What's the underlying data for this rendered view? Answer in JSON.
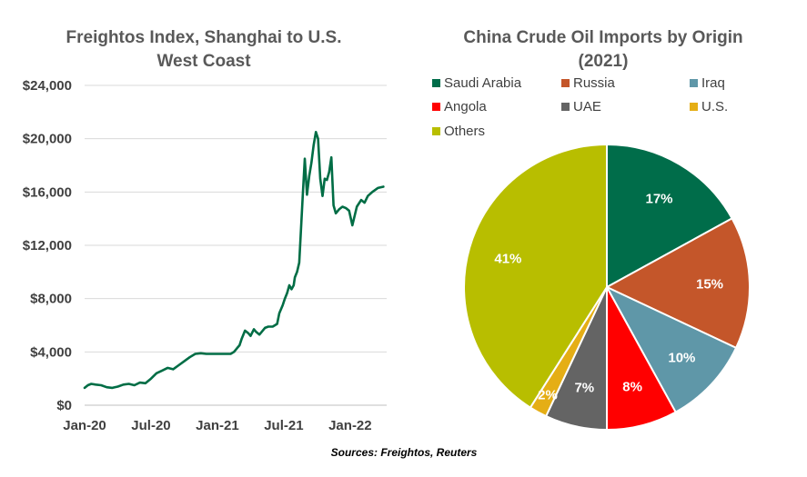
{
  "chart_data": [
    {
      "type": "line",
      "title_lines": [
        "Freightos Index, Shanghai to U.S.",
        "West Coast"
      ],
      "xlabel": "",
      "ylabel": "",
      "x_tick_labels": [
        "Jan-20",
        "Jul-20",
        "Jan-21",
        "Jul-21",
        "Jan-22"
      ],
      "x_tick_months": [
        0,
        6,
        12,
        18,
        24
      ],
      "x_range_months": [
        0,
        27.3
      ],
      "y_tick_labels": [
        "$0",
        "$4,000",
        "$8,000",
        "$12,000",
        "$16,000",
        "$20,000",
        "$24,000"
      ],
      "y_ticks": [
        0,
        4000,
        8000,
        12000,
        16000,
        20000,
        24000
      ],
      "ylim": [
        0,
        24000
      ],
      "grid": "horizontal",
      "line_color": "#006D45",
      "series": [
        {
          "month": [
            0,
            0.3,
            0.6,
            1.0,
            1.5,
            2.0,
            2.5,
            3.0,
            3.5,
            4.0,
            4.5,
            5.0,
            5.5,
            6.0,
            6.5,
            7.0,
            7.5,
            8.0,
            8.5,
            9.0,
            9.5,
            10.0,
            10.5,
            11.0,
            11.5,
            12.0,
            12.5,
            12.8,
            13.0,
            13.2,
            13.5,
            13.8,
            14.0,
            14.2,
            14.5,
            14.8,
            15.0,
            15.3,
            15.5,
            15.8,
            16.0,
            16.3,
            16.6,
            17.0,
            17.2,
            17.4,
            17.6,
            17.9,
            18.1,
            18.3,
            18.5,
            18.7,
            18.9,
            19.0,
            19.2,
            19.4,
            19.7,
            19.9,
            20.1,
            20.3,
            20.5,
            20.7,
            20.9,
            21.1,
            21.3,
            21.5,
            21.7,
            21.9,
            22.1,
            22.3,
            22.5,
            22.7,
            23.0,
            23.3,
            23.6,
            23.9,
            24.2,
            24.6,
            25.0,
            25.3,
            25.6,
            26.0,
            26.5,
            27.0
          ],
          "values": [
            1300,
            1500,
            1600,
            1550,
            1500,
            1350,
            1300,
            1400,
            1550,
            1600,
            1500,
            1700,
            1650,
            2000,
            2400,
            2600,
            2800,
            2700,
            3000,
            3300,
            3600,
            3850,
            3900,
            3850,
            3850,
            3850,
            3850,
            3850,
            3850,
            3850,
            4000,
            4300,
            4500,
            5000,
            5600,
            5400,
            5200,
            5700,
            5500,
            5300,
            5500,
            5800,
            5900,
            5900,
            6000,
            6100,
            6900,
            7500,
            8000,
            8400,
            9000,
            8700,
            9000,
            9600,
            10000,
            10700,
            15500,
            18500,
            15800,
            17200,
            18200,
            19500,
            20500,
            20000,
            17000,
            15700,
            17000,
            16900,
            17500,
            18600,
            15000,
            14400,
            14700,
            14900,
            14800,
            14600,
            13500,
            14900,
            15400,
            15200,
            15700,
            16000,
            16300,
            16400
          ]
        }
      ]
    },
    {
      "type": "pie",
      "title_lines": [
        "China Crude Oil Imports by Origin",
        "(2021)"
      ],
      "legend_position": "top",
      "slices": [
        {
          "name": "Saudi Arabia",
          "value": 17,
          "label": "17%",
          "color": "#006D4A",
          "label_color": "#ffffff"
        },
        {
          "name": "Russia",
          "value": 15,
          "label": "15%",
          "color": "#C4562A",
          "label_color": "#ffffff"
        },
        {
          "name": "Iraq",
          "value": 10,
          "label": "10%",
          "color": "#5F97A8",
          "label_color": "#ffffff"
        },
        {
          "name": "Angola",
          "value": 8,
          "label": "8%",
          "color": "#FF0000",
          "label_color": "#ffffff"
        },
        {
          "name": "UAE",
          "value": 7,
          "label": "7%",
          "color": "#646464",
          "label_color": "#ffffff"
        },
        {
          "name": "U.S.",
          "value": 2,
          "label": "2%",
          "color": "#E5AE15",
          "label_color": "#ffffff"
        },
        {
          "name": "Others",
          "value": 41,
          "label": "41%",
          "color": "#B8BE00",
          "label_color": "#ffffff"
        }
      ]
    }
  ],
  "source_note": "Sources: Freightos, Reuters"
}
